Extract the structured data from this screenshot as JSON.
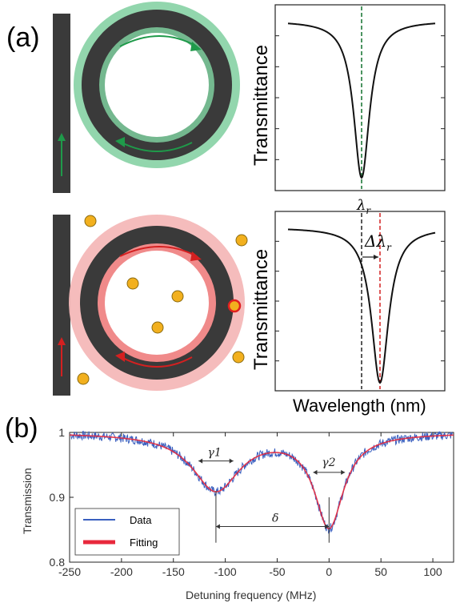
{
  "panel_a": {
    "label": "(a)",
    "top_plot": {
      "ylabel": "Transmittance",
      "resonance_label": "λ",
      "resonance_sub": "r"
    },
    "bottom_plot": {
      "ylabel": "Transmittance",
      "xlabel": "Wavelength (nm)",
      "shift_label": "Δλ",
      "shift_sub": "r"
    },
    "colors": {
      "waveguide": "#3a3a3a",
      "ring_mode_clean": "#7fcf9f",
      "ring_mode_shifted": "#f08a8a",
      "arrow_clean": "#1f9a4a",
      "arrow_shifted": "#d42020",
      "particle": "#f2b01e"
    }
  },
  "panel_b": {
    "label": "(b)",
    "chart_data": {
      "type": "line",
      "xlabel": "Detuning frequency (MHz)",
      "ylabel": "Transmission",
      "xlim": [
        -250,
        120
      ],
      "ylim": [
        0.8,
        1.0
      ],
      "xticks": [
        -250,
        -200,
        -150,
        -100,
        -50,
        0,
        50,
        100
      ],
      "yticks": [
        0.8,
        0.9,
        1
      ],
      "ytick_labels": [
        "0.8",
        "0.9",
        "1"
      ],
      "series": [
        {
          "name": "Data",
          "color": "#3a5fbf"
        },
        {
          "name": "Fitting",
          "color": "#e8283c"
        }
      ],
      "dips": [
        {
          "center": -109,
          "depth": 0.088,
          "halfwidth": 28
        },
        {
          "center": 0,
          "depth": 0.143,
          "halfwidth": 17
        }
      ],
      "annotations": {
        "gamma1": "γ1",
        "gamma2": "γ2",
        "delta": "δ"
      }
    }
  }
}
